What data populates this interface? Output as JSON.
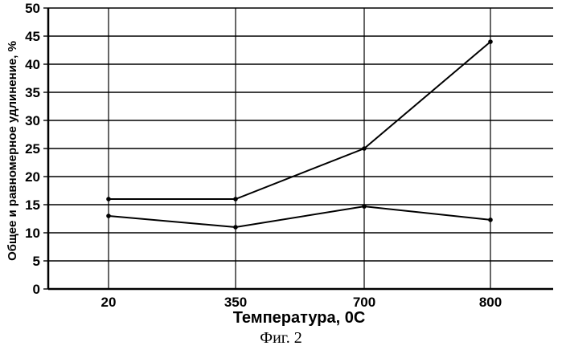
{
  "chart_data": {
    "type": "line",
    "categories": [
      "20",
      "350",
      "700",
      "800"
    ],
    "series": [
      {
        "values": [
          16,
          16,
          25,
          44
        ]
      },
      {
        "values": [
          13,
          11,
          14.7,
          12.3
        ]
      }
    ],
    "xlabel": "Температура, 0С",
    "ylabel": "Общее и равномерное удлинение, %",
    "ylim": [
      0,
      50
    ],
    "yticks": [
      0,
      5,
      10,
      15,
      20,
      25,
      30,
      35,
      40,
      45,
      50
    ],
    "grid": true
  },
  "caption": "Фиг. 2",
  "colors": {
    "line": "#000000",
    "grid": "#000000"
  }
}
